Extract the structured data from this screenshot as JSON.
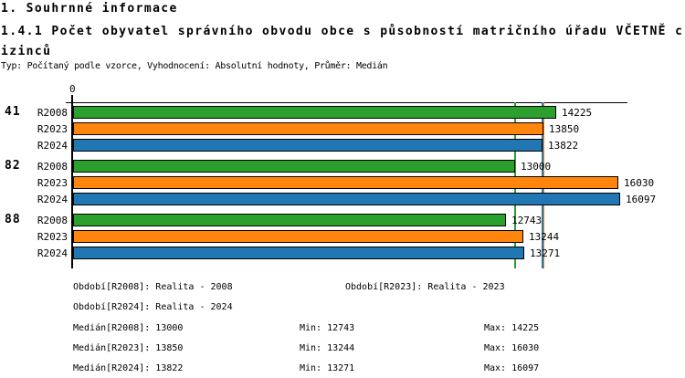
{
  "header": {
    "section_title": "1. Souhrnné informace",
    "chart_title": "1.4.1 Počet obyvatel správního obvodu obce s působností matričního úřadu VČETNĚ cizinců",
    "meta": "Typ: Počítaný podle vzorce, Vyhodnocení: Absolutní hodnoty, Průměr: Medián"
  },
  "chart_data": {
    "type": "bar",
    "orientation": "horizontal",
    "title": "1.4.1 Počet obyvatel správního obvodu obce s působností matričního úřadu VČETNĚ cizinců",
    "origin_label": "0",
    "categories": [
      "41",
      "82",
      "88"
    ],
    "series": [
      {
        "name": "R2008",
        "color": "#2ca02c",
        "values": [
          14225,
          13000,
          12743
        ],
        "median": 13000,
        "min": 12743,
        "max": 14225
      },
      {
        "name": "R2023",
        "color": "#ff850d",
        "values": [
          13850,
          16030,
          13244
        ],
        "median": 13850,
        "min": 13244,
        "max": 16030
      },
      {
        "name": "R2024",
        "color": "#2077b4",
        "values": [
          13822,
          16097,
          13271
        ],
        "median": 13822,
        "min": 13271,
        "max": 16097
      }
    ],
    "xlim": [
      0,
      16310
    ],
    "grid": false,
    "bar_outline_color": "#000000",
    "value_labels_shown": true,
    "median_reference_lines": true,
    "legend_position": "bottom"
  },
  "footer": {
    "periods_row1_col1": "Období[R2008]: Realita - 2008",
    "periods_row1_col2": "Období[R2023]: Realita - 2023",
    "periods_row2_col1": "Období[R2024]: Realita - 2024",
    "stats": [
      {
        "median": "Medián[R2008]: 13000",
        "min": "Min: 12743",
        "max": "Max: 14225"
      },
      {
        "median": "Medián[R2023]: 13850",
        "min": "Min: 13244",
        "max": "Max: 16030"
      },
      {
        "median": "Medián[R2024]: 13822",
        "min": "Min: 13271",
        "max": "Max: 16097"
      }
    ]
  }
}
